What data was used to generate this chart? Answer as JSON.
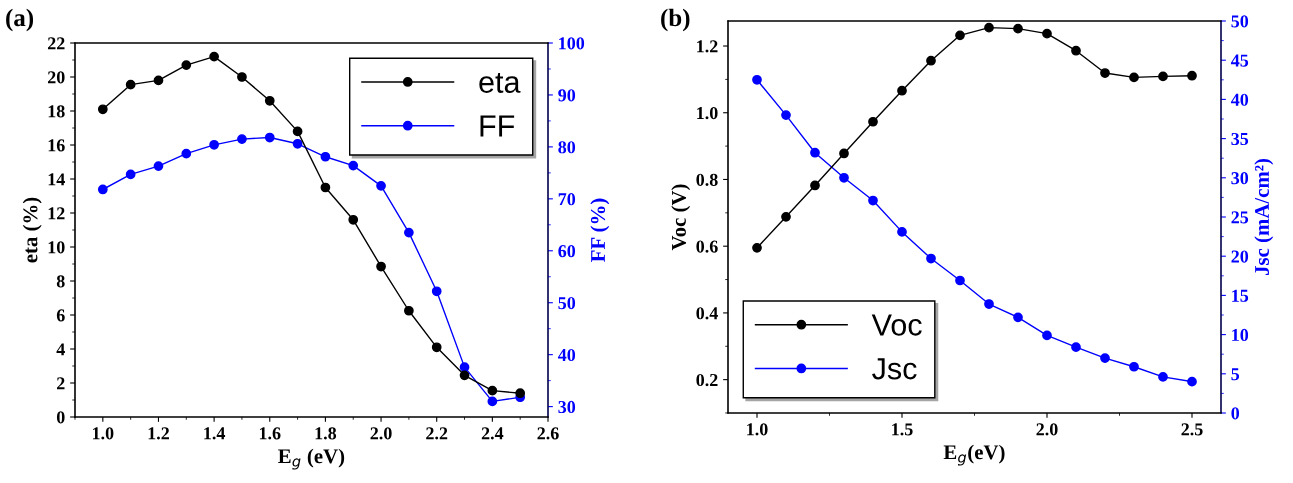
{
  "chart_data": [
    {
      "type": "line",
      "xlabel": "E$_{g}$ (eV)",
      "ylabel": "eta (%)",
      "y2label": "FF (%)",
      "annotations": [
        "(a)"
      ],
      "x": [
        1.0,
        1.1,
        1.2,
        1.3,
        1.4,
        1.5,
        1.6,
        1.7,
        1.8,
        1.9,
        2.0,
        2.1,
        2.2,
        2.3,
        2.4,
        2.5
      ],
      "series": [
        {
          "name": "eta",
          "color": "#000000",
          "values": [
            18.1,
            19.55,
            19.8,
            20.7,
            21.2,
            20.0,
            18.6,
            16.8,
            13.5,
            11.6,
            8.85,
            6.25,
            4.1,
            2.45,
            1.55,
            1.4
          ]
        },
        {
          "name": "FF",
          "color": "#0000ff",
          "axis": "y2",
          "values": [
            71.8,
            74.7,
            76.3,
            78.7,
            80.4,
            81.5,
            81.8,
            80.6,
            78.1,
            76.4,
            72.5,
            63.5,
            52.2,
            37.6,
            31.0,
            31.8
          ]
        }
      ],
      "xlim": [
        0.9,
        2.6
      ],
      "xticks": [
        {
          "value": 1.0,
          "label": "1.0"
        },
        {
          "value": 1.2,
          "label": "1.2"
        },
        {
          "value": 1.4,
          "label": "1.4"
        },
        {
          "value": 1.6,
          "label": "1.6"
        },
        {
          "value": 1.8,
          "label": "1.8"
        },
        {
          "value": 2.0,
          "label": "2.0"
        },
        {
          "value": 2.2,
          "label": "2.2"
        },
        {
          "value": 2.4,
          "label": "2.4"
        },
        {
          "value": 2.6,
          "label": "2.6"
        }
      ],
      "ylim": [
        0,
        22
      ],
      "yticks": [
        0,
        2,
        4,
        6,
        8,
        10,
        12,
        14,
        16,
        18,
        20,
        22
      ],
      "y2lim": [
        28,
        100
      ],
      "y2ticks": [
        30,
        40,
        50,
        60,
        70,
        80,
        90,
        100
      ],
      "legend": "top right",
      "marker": "circle",
      "line_style": "solid",
      "grid": false
    },
    {
      "type": "line",
      "xlabel": "E$_{g}$(eV)",
      "ylabel": "Voc (V)",
      "y2label": "Jsc (mA/cm²)",
      "annotations": [
        "(b)"
      ],
      "x": [
        1.0,
        1.1,
        1.2,
        1.3,
        1.4,
        1.5,
        1.6,
        1.7,
        1.8,
        1.9,
        2.0,
        2.1,
        2.2,
        2.3,
        2.4,
        2.5
      ],
      "series": [
        {
          "name": "Voc",
          "color": "#000000",
          "values": [
            0.595,
            0.688,
            0.782,
            0.878,
            0.973,
            1.066,
            1.156,
            1.232,
            1.255,
            1.252,
            1.237,
            1.186,
            1.119,
            1.106,
            1.109,
            1.111
          ]
        },
        {
          "name": "Jsc",
          "color": "#0000ff",
          "axis": "y2",
          "values": [
            42.5,
            38.0,
            33.2,
            30.0,
            27.1,
            23.1,
            19.7,
            16.9,
            13.9,
            12.2,
            9.9,
            8.4,
            7.0,
            5.9,
            4.6,
            4.0
          ]
        }
      ],
      "xlim": [
        0.9,
        2.6
      ],
      "xticks": [
        {
          "value": 1.0,
          "label": "1.0"
        },
        {
          "value": 1.5,
          "label": "1.5"
        },
        {
          "value": 2.0,
          "label": "2.0"
        },
        {
          "value": 2.5,
          "label": "2.5"
        }
      ],
      "ylim": [
        0.1,
        1.275
      ],
      "yticks": [
        {
          "value": 0.2,
          "label": "0.2"
        },
        {
          "value": 0.4,
          "label": "0.4"
        },
        {
          "value": 0.6,
          "label": "0.6"
        },
        {
          "value": 0.8,
          "label": "0.8"
        },
        {
          "value": 1.0,
          "label": "1.0"
        },
        {
          "value": 1.2,
          "label": "1.2"
        }
      ],
      "y2lim": [
        0,
        50
      ],
      "y2ticks": [
        0,
        5,
        10,
        15,
        20,
        25,
        30,
        35,
        40,
        45,
        50
      ],
      "legend": "bottom left",
      "marker": "circle",
      "line_style": "solid",
      "grid": false
    }
  ]
}
